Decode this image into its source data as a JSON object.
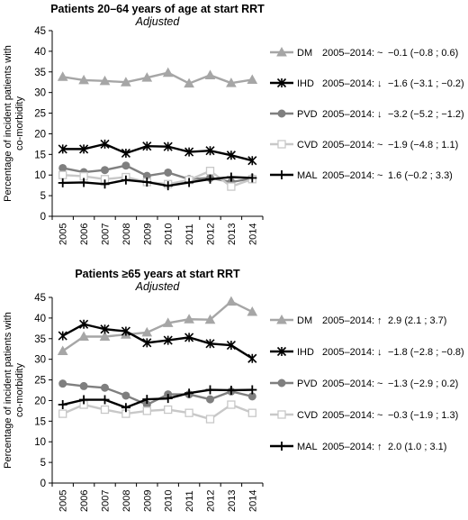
{
  "chart_data": [
    {
      "type": "line",
      "title": "Patients 20–64 years of age at start RRT",
      "subtitle": "Adjusted",
      "ylabel": "Percentage of incident patients with co-morbidity",
      "xlabel": "",
      "categories": [
        "2005",
        "2006",
        "2007",
        "2008",
        "2009",
        "2010",
        "2011",
        "2012",
        "2013",
        "2014"
      ],
      "ylim": [
        0,
        45
      ],
      "yticks": [
        0,
        5,
        10,
        15,
        20,
        25,
        30,
        35,
        40,
        45
      ],
      "grid": false,
      "legend": "right",
      "series": [
        {
          "name": "DM",
          "trend_label": "2005–2014:",
          "trend_symbol": "~",
          "trend_value": "−0.1 (−0.8 ; 0.6)",
          "color": "#a6a6a6",
          "marker": "triangle",
          "values": [
            33.8,
            33.0,
            32.8,
            32.5,
            33.6,
            34.8,
            32.2,
            34.2,
            32.3,
            33.1
          ]
        },
        {
          "name": "IHD",
          "trend_label": "2005–2014:",
          "trend_symbol": "↓",
          "trend_value": "−1.6 (−3.1 ; −0.2)",
          "color": "#000000",
          "marker": "asterisk",
          "values": [
            16.3,
            16.3,
            17.5,
            15.3,
            17.0,
            16.9,
            15.6,
            15.9,
            14.8,
            13.5
          ]
        },
        {
          "name": "PVD",
          "trend_label": "2005–2014:",
          "trend_symbol": "↓",
          "trend_value": "−3.2 (−5.2 ; −1.2)",
          "color": "#7f7f7f",
          "marker": "circle",
          "values": [
            11.7,
            10.7,
            11.2,
            12.3,
            9.8,
            10.6,
            9.0,
            9.3,
            8.3,
            9.2
          ]
        },
        {
          "name": "CVD",
          "trend_label": "2005–2014:",
          "trend_symbol": "~",
          "trend_value": "−1.9 (−4.8 ; 1.1)",
          "color": "#c8c8c8",
          "marker": "square",
          "values": [
            10.0,
            9.7,
            9.0,
            9.5,
            8.3,
            7.8,
            8.8,
            11.0,
            7.2,
            9.0
          ]
        },
        {
          "name": "MAL",
          "trend_label": "2005–2014:",
          "trend_symbol": "~",
          "trend_value": "1.6 (−0.2 ; 3.3)",
          "color": "#000000",
          "marker": "plus",
          "values": [
            8.1,
            8.2,
            7.8,
            8.8,
            8.3,
            7.4,
            8.2,
            9.0,
            9.5,
            9.3
          ]
        }
      ]
    },
    {
      "type": "line",
      "title": "Patients ≥65 years at start RRT",
      "subtitle": "Adjusted",
      "ylabel": "Percentage of incident patients with co-morbidity",
      "xlabel": "",
      "categories": [
        "2005",
        "2006",
        "2007",
        "2008",
        "2009",
        "2010",
        "2011",
        "2012",
        "2013",
        "2014"
      ],
      "ylim": [
        0,
        45
      ],
      "yticks": [
        0,
        5,
        10,
        15,
        20,
        25,
        30,
        35,
        40,
        45
      ],
      "grid": false,
      "legend": "right",
      "series": [
        {
          "name": "DM",
          "trend_label": "2005–2014:",
          "trend_symbol": "↑",
          "trend_value": "2.9 (2.1 ; 3.7)",
          "color": "#a6a6a6",
          "marker": "triangle",
          "values": [
            32.0,
            35.5,
            35.5,
            36.0,
            36.5,
            38.8,
            39.7,
            39.6,
            44.0,
            41.5
          ]
        },
        {
          "name": "IHD",
          "trend_label": "2005–2014:",
          "trend_symbol": "↓",
          "trend_value": "−1.8 (−2.8 ; −0.8)",
          "color": "#000000",
          "marker": "asterisk",
          "values": [
            35.7,
            38.5,
            37.3,
            36.8,
            34.0,
            34.6,
            35.3,
            33.8,
            33.4,
            30.2
          ]
        },
        {
          "name": "PVD",
          "trend_label": "2005–2014:",
          "trend_symbol": "~",
          "trend_value": "−1.3 (−2.9 ; 0.2)",
          "color": "#7f7f7f",
          "marker": "circle",
          "values": [
            24.1,
            23.5,
            23.1,
            21.2,
            19.0,
            21.5,
            21.5,
            20.3,
            22.2,
            21.0
          ]
        },
        {
          "name": "CVD",
          "trend_label": "2005–2014:",
          "trend_symbol": "~",
          "trend_value": "−0.3 (−1.9 ; 1.3)",
          "color": "#c8c8c8",
          "marker": "square",
          "values": [
            16.8,
            19.0,
            17.8,
            16.8,
            17.5,
            17.8,
            17.0,
            15.5,
            19.0,
            17.0
          ]
        },
        {
          "name": "MAL",
          "trend_label": "2005–2014:",
          "trend_symbol": "↑",
          "trend_value": "2.0 (1.0 ; 3.1)",
          "color": "#000000",
          "marker": "plus",
          "values": [
            19.0,
            20.2,
            20.2,
            18.3,
            20.3,
            20.5,
            21.8,
            22.6,
            22.5,
            22.6
          ]
        }
      ]
    }
  ]
}
